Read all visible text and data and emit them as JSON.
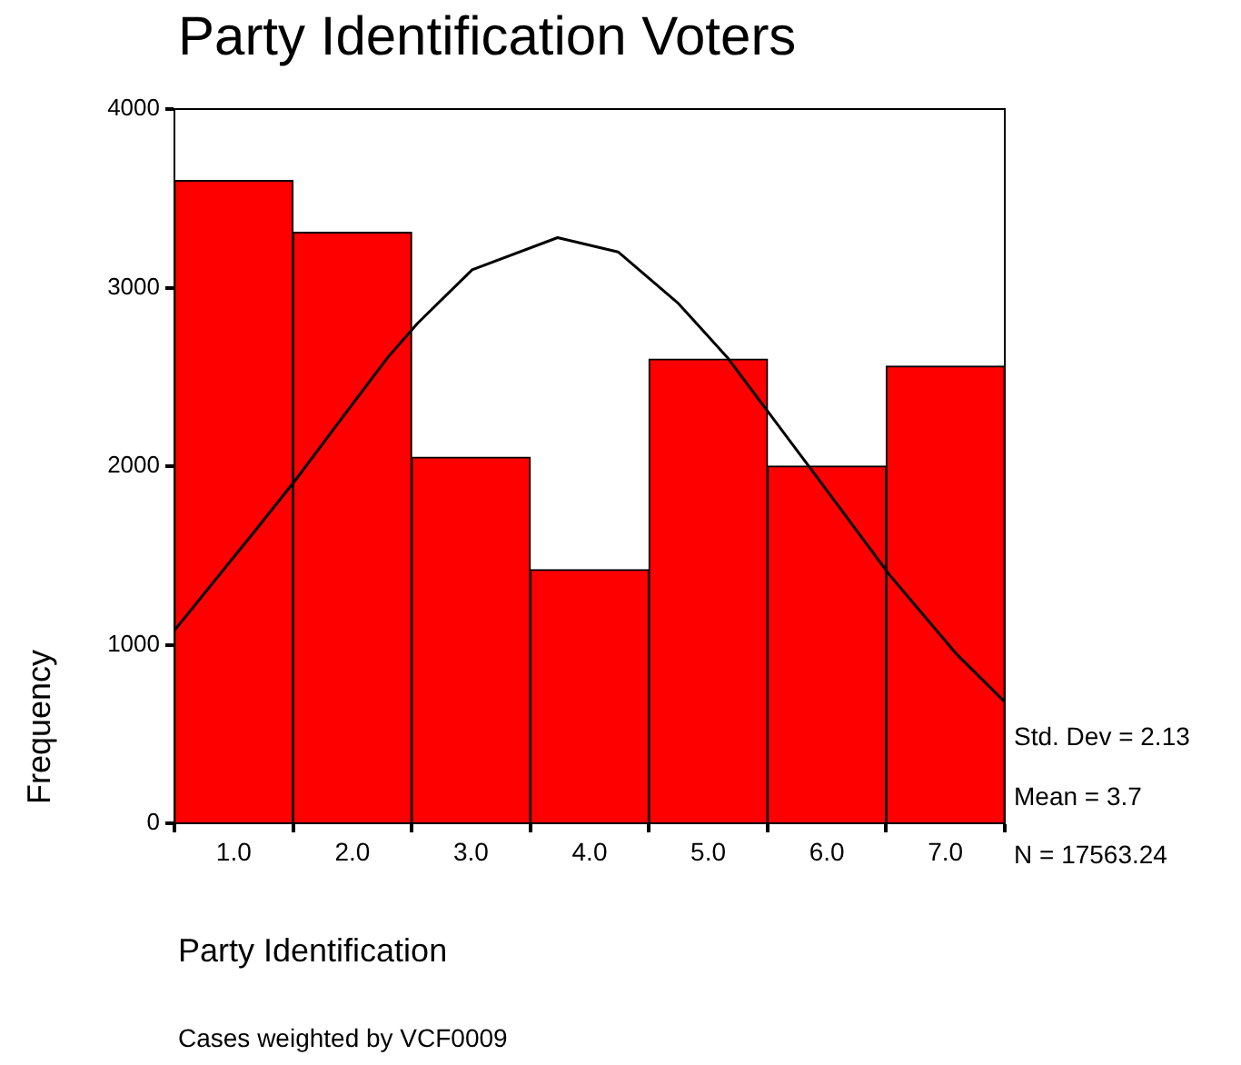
{
  "chart_data": {
    "type": "histogram",
    "title": "Party Identification Voters",
    "xlabel": "Party Identification",
    "ylabel": "Frequency",
    "series": [
      {
        "color": "#ff0000",
        "bins": [
          0.5,
          1.5,
          2.5,
          3.5,
          4.5,
          5.5,
          6.5,
          7.5
        ],
        "values": [
          3600,
          3310,
          2050,
          1420,
          2600,
          2000,
          2560
        ]
      },
      {
        "type": "line",
        "color": "#000000",
        "marker": "none",
        "x": [
          0.5,
          1.17,
          1.53,
          1.89,
          2.3,
          2.55,
          3.01,
          3.73,
          4.24,
          4.75,
          5.16,
          5.51,
          5.87,
          6.53,
          7.09,
          7.5
        ],
        "values": [
          1080,
          1630,
          1930,
          2250,
          2610,
          2800,
          3100,
          3280,
          3200,
          2910,
          2610,
          2300,
          1980,
          1390,
          950,
          680
        ]
      }
    ],
    "xlim": [
      0.5,
      7.5
    ],
    "xticks": [
      {
        "value": 1,
        "label": "1.0"
      },
      {
        "value": 2,
        "label": "2.0"
      },
      {
        "value": 3,
        "label": "3.0"
      },
      {
        "value": 4,
        "label": "4.0"
      },
      {
        "value": 5,
        "label": "5.0"
      },
      {
        "value": 6,
        "label": "6.0"
      },
      {
        "value": 7,
        "label": "7.0"
      }
    ],
    "ylim": [
      0,
      4000
    ],
    "yticks": [
      0,
      1000,
      2000,
      3000,
      4000
    ],
    "annotations": [
      "Std. Dev = 2.13",
      "Mean = 3.7",
      "N = 17563.24",
      "Cases weighted by VCF0009"
    ]
  }
}
